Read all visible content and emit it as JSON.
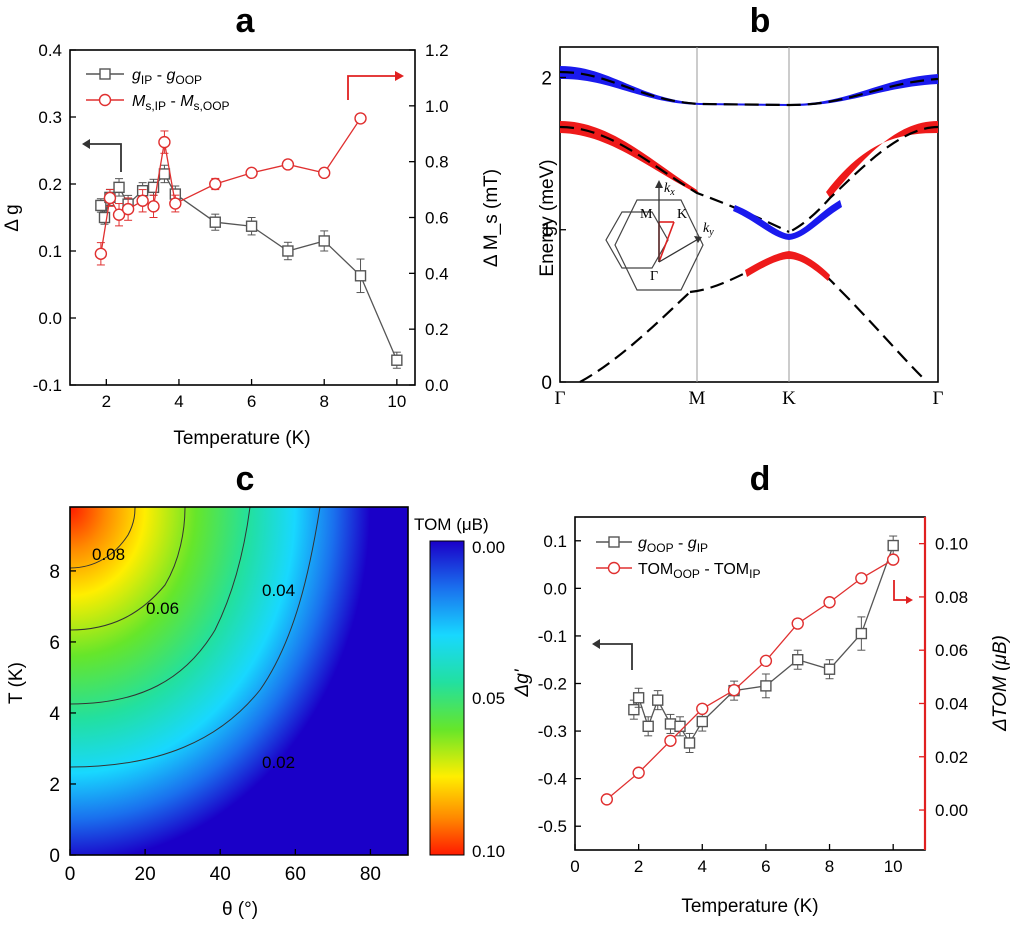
{
  "chart_data": [
    {
      "panel": "a",
      "type": "line",
      "xlabel": "Temperature (K)",
      "ylabel": "Δ g",
      "y2label": "Δ M_s (mT)",
      "xlim": [
        1,
        10.5
      ],
      "ylim": [
        -0.1,
        0.4
      ],
      "y2lim": [
        0,
        1.2
      ],
      "xticks": [
        "2",
        "4",
        "6",
        "8",
        "10"
      ],
      "yticks": [
        "-0.1",
        "0.0",
        "0.1",
        "0.2",
        "0.3",
        "0.4"
      ],
      "y2ticks": [
        "0.0",
        "0.2",
        "0.4",
        "0.6",
        "0.8",
        "1.0",
        "1.2"
      ],
      "series": [
        {
          "name": "gIP - gOOP",
          "axis": "left",
          "color": "#555555",
          "marker": "square",
          "x": [
            1.85,
            1.95,
            2.1,
            2.35,
            2.6,
            3.0,
            3.3,
            3.6,
            3.9,
            5.0,
            6.0,
            7.0,
            8.0,
            9.0,
            10.0
          ],
          "y": [
            0.168,
            0.15,
            0.18,
            0.195,
            0.17,
            0.19,
            0.195,
            0.215,
            0.185,
            0.143,
            0.137,
            0.1,
            0.115,
            0.063,
            -0.063
          ],
          "err": [
            0.01,
            0.01,
            0.012,
            0.013,
            0.013,
            0.012,
            0.012,
            0.013,
            0.012,
            0.012,
            0.013,
            0.013,
            0.015,
            0.025,
            0.012
          ]
        },
        {
          "name": "Ms,IP - Ms,OOP",
          "axis": "right",
          "color": "#e03030",
          "marker": "circle",
          "x": [
            1.85,
            2.1,
            2.35,
            2.6,
            3.0,
            3.3,
            3.6,
            3.9,
            5.0,
            6.0,
            7.0,
            8.0,
            9.0
          ],
          "y": [
            0.47,
            0.67,
            0.61,
            0.63,
            0.66,
            0.64,
            0.87,
            0.65,
            0.72,
            0.76,
            0.79,
            0.76,
            0.955
          ],
          "err": [
            0.04,
            0.03,
            0.04,
            0.04,
            0.04,
            0.04,
            0.04,
            0.03,
            0.02,
            0.015,
            0.015,
            0.015,
            0.015
          ]
        }
      ],
      "legend": [
        {
          "main": "g",
          "sub": "IP",
          "mid": " - ",
          "main2": "g",
          "sub2": "OOP"
        },
        {
          "main": "M",
          "sub": "s,IP",
          "mid": " - ",
          "main2": "M",
          "sub2": "s,OOP"
        }
      ]
    },
    {
      "panel": "b",
      "type": "line",
      "ylabel": "Energy (meV)",
      "ylim": [
        0,
        2.2
      ],
      "yticks": [
        "0",
        "1",
        "2"
      ],
      "xticklabels": [
        "Γ",
        "M",
        "K",
        "Γ"
      ],
      "inset_labels": [
        "k_x",
        "k_y",
        "M",
        "K",
        "Γ"
      ],
      "colors": {
        "band_up": "#1a1aee",
        "band_low": "#ee1a1a"
      }
    },
    {
      "panel": "c",
      "type": "heatmap",
      "xlabel": "θ (°)",
      "ylabel": "T (K)",
      "xlim": [
        0,
        90
      ],
      "ylim": [
        0,
        9.8
      ],
      "xticks": [
        "0",
        "20",
        "40",
        "60",
        "80"
      ],
      "yticks": [
        "0",
        "2",
        "4",
        "6",
        "8"
      ],
      "colorbar_title": "TOM",
      "colorbar_unit": "(μB)",
      "colorbar_ticks": [
        "0.00",
        "0.05",
        "0.10"
      ],
      "contours": [
        {
          "level": "0.02"
        },
        {
          "level": "0.04"
        },
        {
          "level": "0.06"
        },
        {
          "level": "0.08"
        }
      ]
    },
    {
      "panel": "d",
      "type": "line",
      "xlabel": "Temperature (K)",
      "ylabel": "Δg'",
      "y2label": "ΔTOM (μB)",
      "xlim": [
        0,
        11
      ],
      "ylim": [
        -0.55,
        0.15
      ],
      "y2lim": [
        -0.015,
        0.11
      ],
      "xticks": [
        "0",
        "2",
        "4",
        "6",
        "8",
        "10"
      ],
      "yticks": [
        "-0.5",
        "-0.4",
        "-0.3",
        "-0.2",
        "-0.1",
        "0.0",
        "0.1"
      ],
      "y2ticks": [
        "0.00",
        "0.02",
        "0.04",
        "0.06",
        "0.08",
        "0.10"
      ],
      "series": [
        {
          "name": "gOOP - gIP",
          "axis": "left",
          "color": "#555555",
          "marker": "square",
          "x": [
            1.85,
            2.0,
            2.3,
            2.6,
            3.0,
            3.3,
            3.6,
            4.0,
            5.0,
            6.0,
            7.0,
            8.0,
            9.0,
            10.0
          ],
          "y": [
            -0.255,
            -0.23,
            -0.29,
            -0.235,
            -0.285,
            -0.29,
            -0.325,
            -0.28,
            -0.215,
            -0.205,
            -0.15,
            -0.17,
            -0.095,
            0.09
          ],
          "err": [
            0.02,
            0.02,
            0.02,
            0.02,
            0.02,
            0.02,
            0.02,
            0.02,
            0.02,
            0.025,
            0.02,
            0.02,
            0.035,
            0.02
          ]
        },
        {
          "name": "TOMOOP - TOMIP",
          "axis": "right",
          "color": "#e03030",
          "marker": "circle",
          "x": [
            1,
            2,
            3,
            4,
            5,
            6,
            7,
            8,
            9,
            10
          ],
          "y": [
            0.004,
            0.014,
            0.026,
            0.038,
            0.045,
            0.056,
            0.07,
            0.078,
            0.087,
            0.094
          ]
        }
      ],
      "legend": [
        {
          "main": "g",
          "sub": "OOP",
          "mid": " - ",
          "main2": "g",
          "sub2": "IP"
        },
        {
          "main": "TOM",
          "sub": "OOP",
          "mid": " - ",
          "main2": "TOM",
          "sub2": "IP"
        }
      ]
    }
  ],
  "panels": {
    "a": "a",
    "b": "b",
    "c": "c",
    "d": "d"
  }
}
